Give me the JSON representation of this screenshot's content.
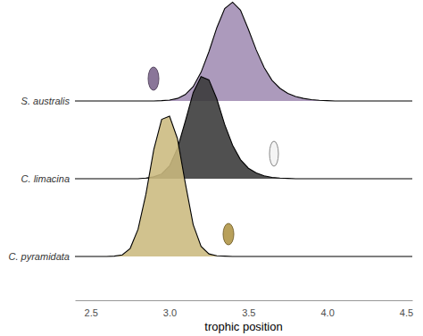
{
  "chart_data": {
    "type": "ridgeline",
    "xlabel": "trophic position",
    "x": [
      2.4,
      2.45,
      2.5,
      2.55,
      2.6,
      2.65,
      2.7,
      2.75,
      2.8,
      2.85,
      2.9,
      2.95,
      3.0,
      3.05,
      3.1,
      3.15,
      3.2,
      3.25,
      3.3,
      3.35,
      3.4,
      3.45,
      3.5,
      3.55,
      3.6,
      3.65,
      3.7,
      3.75,
      3.8,
      3.85,
      3.9,
      3.95,
      4.0,
      4.05,
      4.1,
      4.15,
      4.2,
      4.25,
      4.3,
      4.35,
      4.4,
      4.45,
      4.5,
      4.54
    ],
    "series": [
      {
        "name": "S. australis",
        "color": "#a08cb3",
        "values": [
          0,
          0,
          0,
          0,
          0,
          0,
          0,
          0,
          0,
          0,
          0,
          0.01,
          0.03,
          0.08,
          0.2,
          0.45,
          0.9,
          1.55,
          2.3,
          2.9,
          3.1,
          2.85,
          2.25,
          1.6,
          1.05,
          0.65,
          0.4,
          0.24,
          0.14,
          0.08,
          0.04,
          0.02,
          0.01,
          0,
          0,
          0,
          0,
          0,
          0,
          0,
          0,
          0,
          0,
          0
        ]
      },
      {
        "name": "C. limacina",
        "color": "#383838",
        "values": [
          0,
          0,
          0,
          0,
          0,
          0,
          0,
          0,
          0,
          0.02,
          0.06,
          0.15,
          0.4,
          0.95,
          1.8,
          2.7,
          3.2,
          3.1,
          2.5,
          1.7,
          1.05,
          0.6,
          0.33,
          0.18,
          0.09,
          0.04,
          0.02,
          0.01,
          0,
          0,
          0,
          0,
          0,
          0,
          0,
          0,
          0,
          0,
          0,
          0,
          0,
          0,
          0,
          0
        ]
      },
      {
        "name": "C. pyramidata",
        "color": "#cbb97e",
        "values": [
          0,
          0,
          0,
          0,
          0,
          0.01,
          0.05,
          0.25,
          0.85,
          1.95,
          3.35,
          4.3,
          4.4,
          3.7,
          2.3,
          1.0,
          0.32,
          0.08,
          0.02,
          0.01,
          0,
          0,
          0,
          0,
          0,
          0,
          0,
          0,
          0,
          0,
          0,
          0,
          0,
          0,
          0,
          0,
          0,
          0,
          0,
          0,
          0,
          0,
          0,
          0
        ]
      }
    ],
    "xlim": [
      2.4,
      4.54
    ],
    "xticks": [
      2.5,
      {
        "value": 3,
        "label": "3.0"
      },
      3.5,
      {
        "value": 4,
        "label": "4.0"
      },
      4.5
    ]
  }
}
